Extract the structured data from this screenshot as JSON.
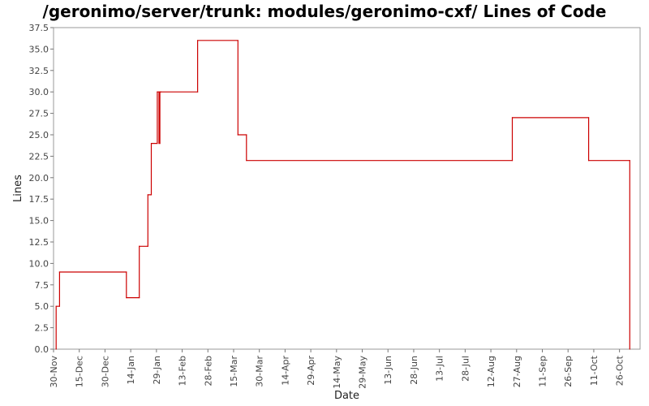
{
  "chart_data": {
    "type": "line",
    "title": "/geronimo/server/trunk: modules/geronimo-cxf/ Lines of Code",
    "xlabel": "Date",
    "ylabel": "Lines",
    "ylim": [
      0,
      37.5
    ],
    "yticks": [
      "0.0",
      "2.5",
      "5.0",
      "7.5",
      "10.0",
      "12.5",
      "15.0",
      "17.5",
      "20.0",
      "22.5",
      "25.0",
      "27.5",
      "30.0",
      "32.5",
      "35.0",
      "37.5"
    ],
    "xticks": [
      "30-Nov",
      "15-Dec",
      "30-Dec",
      "14-Jan",
      "29-Jan",
      "13-Feb",
      "28-Feb",
      "15-Mar",
      "30-Mar",
      "14-Apr",
      "29-Apr",
      "14-May",
      "29-May",
      "13-Jun",
      "28-Jun",
      "13-Jul",
      "28-Jul",
      "12-Aug",
      "27-Aug",
      "11-Sep",
      "26-Sep",
      "11-Oct",
      "26-Oct"
    ],
    "grid": false,
    "legend": "none",
    "line_color": "#cc0000",
    "series": [
      {
        "x": [
          1.5,
          1.5,
          3.5,
          3.5,
          42.5,
          42.5,
          50,
          50,
          55,
          55,
          57,
          57,
          60.5,
          60.5,
          61.5,
          61.5,
          62,
          62,
          62.5,
          62.5,
          84,
          84,
          107.5,
          107.5,
          112.5,
          112.5,
          267.5,
          267.5,
          312,
          312,
          336,
          336
        ],
        "y": [
          0,
          5,
          5,
          9,
          9,
          6,
          6,
          12,
          12,
          18,
          18,
          24,
          24,
          30,
          30,
          24,
          24,
          30,
          30,
          30,
          30,
          36,
          36,
          25,
          25,
          22,
          22,
          27,
          27,
          22,
          22,
          0
        ]
      }
    ]
  }
}
